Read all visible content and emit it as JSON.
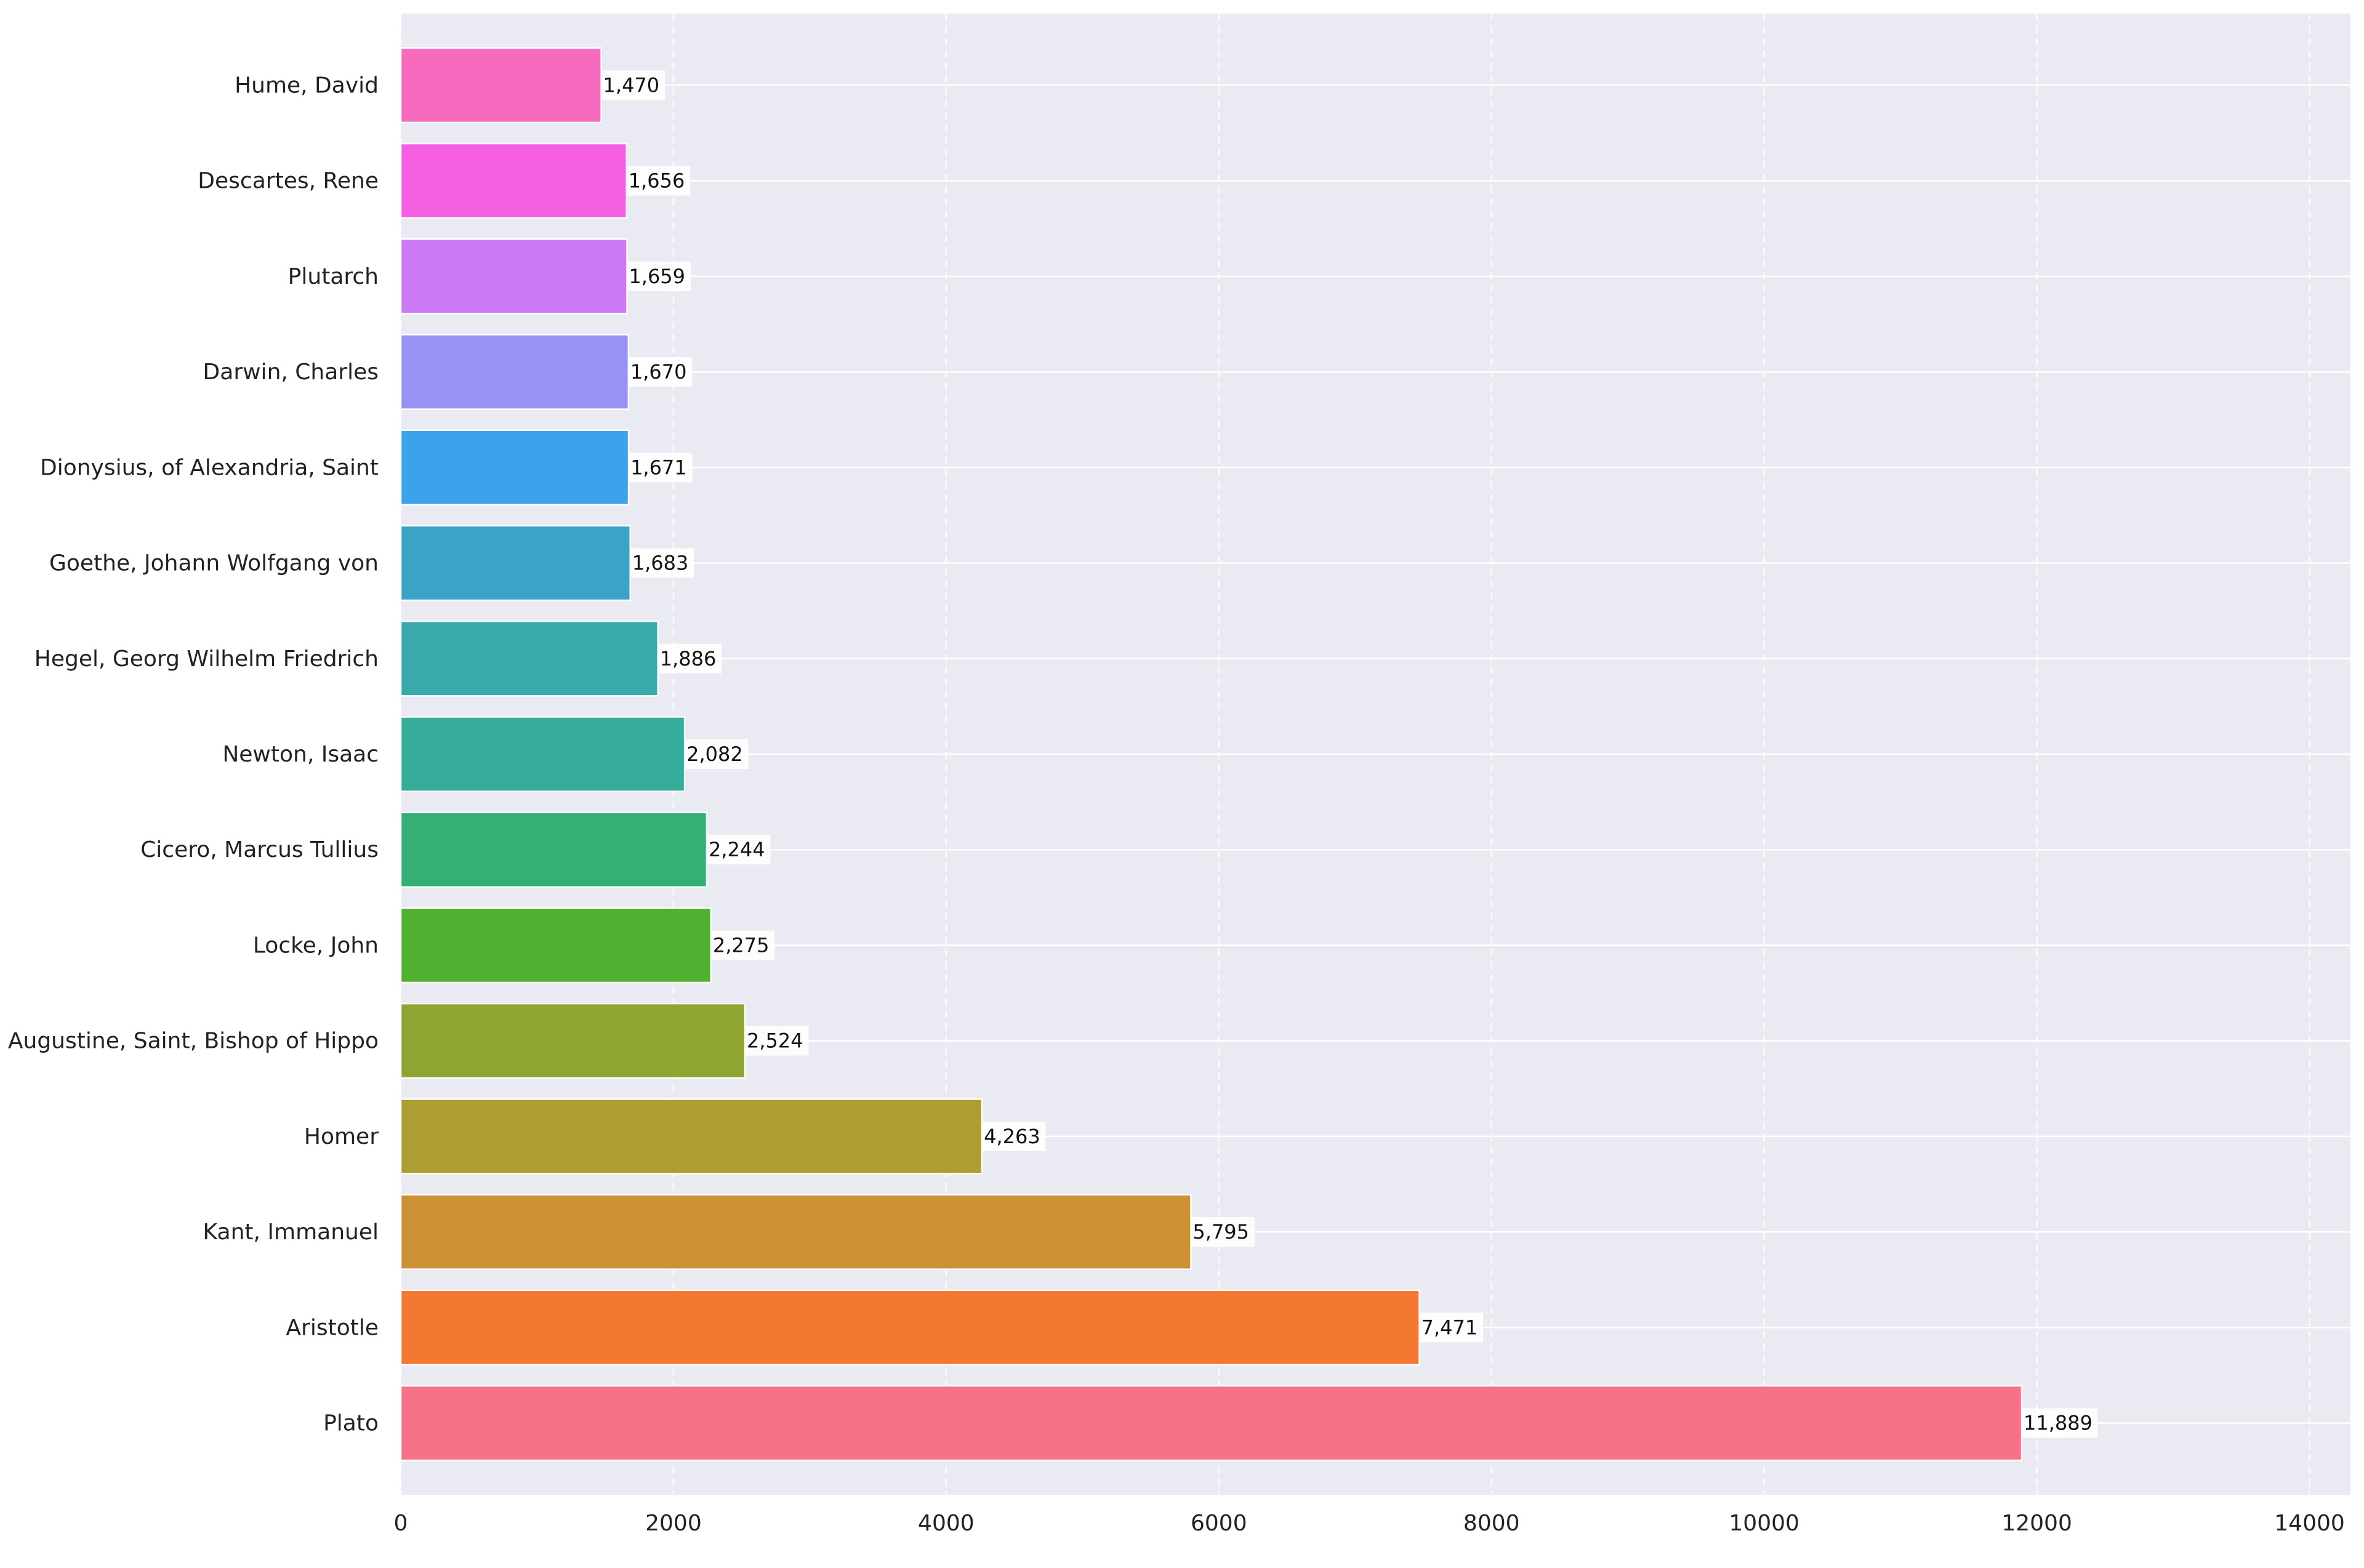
{
  "chart_data": {
    "type": "bar",
    "orientation": "horizontal",
    "title": "",
    "xlabel": "",
    "ylabel": "",
    "xlim": [
      0,
      14300
    ],
    "xticks": [
      0,
      2000,
      4000,
      6000,
      8000,
      10000,
      12000,
      14000
    ],
    "xtick_labels": [
      "0",
      "2000",
      "4000",
      "6000",
      "8000",
      "10000",
      "12000",
      "14000"
    ],
    "grid": true,
    "categories": [
      "Plato",
      "Aristotle",
      "Kant, Immanuel",
      "Homer",
      "Augustine, Saint, Bishop of Hippo",
      "Locke, John",
      "Cicero, Marcus Tullius",
      "Newton, Isaac",
      "Hegel, Georg Wilhelm Friedrich",
      "Goethe, Johann Wolfgang von",
      "Dionysius, of Alexandria, Saint",
      "Darwin, Charles",
      "Plutarch",
      "Descartes, Rene",
      "Hume, David"
    ],
    "values": [
      11889,
      7471,
      5795,
      4263,
      2524,
      2275,
      2244,
      2082,
      1886,
      1683,
      1671,
      1670,
      1659,
      1656,
      1470
    ],
    "value_labels": [
      "11,889",
      "7,471",
      "5,795",
      "4,263",
      "2,524",
      "2,275",
      "2,244",
      "2,082",
      "1,886",
      "1,683",
      "1,671",
      "1,670",
      "1,659",
      "1,656",
      "1,470"
    ],
    "colors": [
      "#f77189",
      "#f37932",
      "#cc9035",
      "#ae9d31",
      "#8ea531",
      "#50b131",
      "#34b075",
      "#36ad9a",
      "#38aaac",
      "#3ba3c6",
      "#3ba3ec",
      "#9792f4",
      "#cc7af4",
      "#f45fe1",
      "#f66bbd"
    ],
    "background": "#eaeaf2",
    "grid_color": "#ffffff"
  }
}
